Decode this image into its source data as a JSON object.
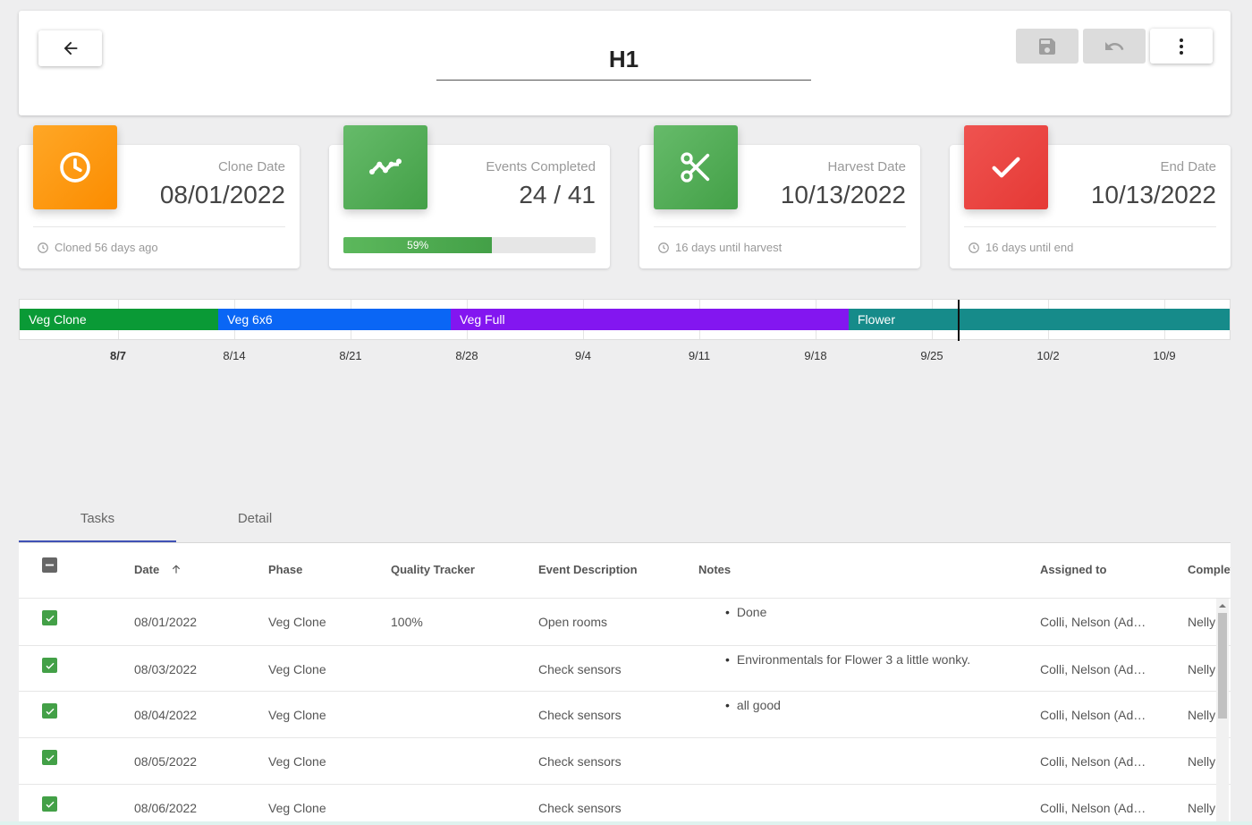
{
  "header": {
    "title": "H1"
  },
  "cards": [
    {
      "label": "Clone Date",
      "value": "08/01/2022",
      "footer": "Cloned 56 days ago",
      "color": "#ff9800"
    },
    {
      "label": "Events Completed",
      "value": "24 / 41",
      "progress": 59,
      "progress_label": "59%",
      "color": "#4caf50"
    },
    {
      "label": "Harvest Date",
      "value": "10/13/2022",
      "footer": "16 days until harvest",
      "color": "#4caf50"
    },
    {
      "label": "End Date",
      "value": "10/13/2022",
      "footer": "16 days until end",
      "color": "#f44336"
    }
  ],
  "timeline": {
    "phases": [
      {
        "label": "Veg Clone",
        "color": "#0a9a36"
      },
      {
        "label": "Veg 6x6",
        "color": "#0a66f5"
      },
      {
        "label": "Veg Full",
        "color": "#8316f0"
      },
      {
        "label": "Flower",
        "color": "#168b8a"
      }
    ],
    "ticks": [
      "8/7",
      "8/14",
      "8/21",
      "8/28",
      "9/4",
      "9/11",
      "9/18",
      "9/25",
      "10/2",
      "10/9"
    ]
  },
  "tabs": [
    "Tasks",
    "Detail"
  ],
  "table": {
    "headers": [
      "Date",
      "Phase",
      "Quality Tracker",
      "Event Description",
      "Notes",
      "Assigned to",
      "Complet"
    ],
    "rows": [
      {
        "date": "08/01/2022",
        "phase": "Veg Clone",
        "quality": "100%",
        "event": "Open rooms",
        "note": "Done",
        "assigned": "Colli, Nelson (Ad…",
        "completed": "Nelly"
      },
      {
        "date": "08/03/2022",
        "phase": "Veg Clone",
        "quality": "",
        "event": "Check sensors",
        "note": "Environmentals for Flower 3 a little wonky.",
        "assigned": "Colli, Nelson (Ad…",
        "completed": "Nelly"
      },
      {
        "date": "08/04/2022",
        "phase": "Veg Clone",
        "quality": "",
        "event": "Check sensors",
        "note": "all good",
        "assigned": "Colli, Nelson (Ad…",
        "completed": "Nelly"
      },
      {
        "date": "08/05/2022",
        "phase": "Veg Clone",
        "quality": "",
        "event": "Check sensors",
        "note": "",
        "assigned": "Colli, Nelson (Ad…",
        "completed": "Nelly"
      },
      {
        "date": "08/06/2022",
        "phase": "Veg Clone",
        "quality": "",
        "event": "Check sensors",
        "note": "",
        "assigned": "Colli, Nelson (Ad…",
        "completed": "Nelly"
      }
    ]
  },
  "icons": {
    "back": "arrow-left-icon",
    "save": "save-icon",
    "undo": "undo-icon",
    "more": "more-vert-icon",
    "clone": "clock-icon",
    "events": "trending-icon",
    "harvest": "scissors-icon",
    "end": "check-icon"
  }
}
